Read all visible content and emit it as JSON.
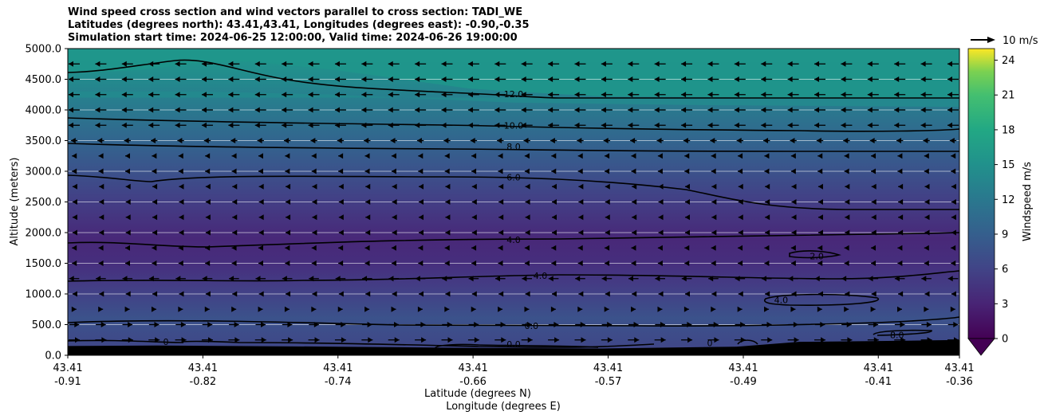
{
  "titles": {
    "line1": "Wind speed cross section and wind vectors parallel to cross section: TADI_WE",
    "line2": "Latitudes (degrees north): 43.41,43.41, Longitudes (degrees east): -0.90,-0.35",
    "line3": "Simulation start time: 2024-06-25 12:00:00, Valid time: 2024-06-26 19:00:00"
  },
  "chart_data": {
    "type": "heatmap",
    "subtype": "contourf with contour lines and quiver arrows",
    "ylabel": "Altitude (meters)",
    "xlabel_line1": "Latitude (degrees N)",
    "xlabel_line2": "Longitude (degrees E)",
    "ylim": [
      0,
      5000
    ],
    "y_ticks": [
      "0.0",
      "500.0",
      "1000.0",
      "1500.0",
      "2000.0",
      "2500.0",
      "3000.0",
      "3500.0",
      "4000.0",
      "4500.0",
      "5000.0"
    ],
    "x_ticks": [
      {
        "lat": "43.41",
        "lon": "-0.91"
      },
      {
        "lat": "43.41",
        "lon": "-0.82"
      },
      {
        "lat": "43.41",
        "lon": "-0.74"
      },
      {
        "lat": "43.41",
        "lon": "-0.66"
      },
      {
        "lat": "43.41",
        "lon": "-0.57"
      },
      {
        "lat": "43.41",
        "lon": "-0.49"
      },
      {
        "lat": "43.41",
        "lon": "-0.41"
      },
      {
        "lat": "43.41",
        "lon": "-0.36"
      }
    ],
    "colorbar": {
      "label": "Windspeed m/s",
      "range": [
        0,
        25
      ],
      "ticks": [
        "0",
        "3",
        "6",
        "9",
        "12",
        "15",
        "18",
        "21",
        "24"
      ],
      "extend": "min"
    },
    "quiver_key": "10 m/s",
    "grid": "horizontal",
    "contour_labels": [
      {
        "text": "12.0",
        "x": 0.5,
        "alt": 4260
      },
      {
        "text": "10.0",
        "x": 0.5,
        "alt": 3750
      },
      {
        "text": "8.0",
        "x": 0.5,
        "alt": 3400
      },
      {
        "text": "6.0",
        "x": 0.5,
        "alt": 2900
      },
      {
        "text": "4.0",
        "x": 0.5,
        "alt": 1880
      },
      {
        "text": "4.0",
        "x": 0.53,
        "alt": 1300
      },
      {
        "text": "0.0",
        "x": 0.52,
        "alt": 480
      },
      {
        "text": "0.0",
        "x": 0.5,
        "alt": 180
      },
      {
        "text": "2.0",
        "x": 0.84,
        "alt": 1620
      },
      {
        "text": "4.0",
        "x": 0.8,
        "alt": 900
      },
      {
        "text": "8.0",
        "x": 0.93,
        "alt": 330
      },
      {
        "text": "0",
        "x": 0.72,
        "alt": 200
      },
      {
        "text": "0",
        "x": 0.11,
        "alt": 220
      }
    ],
    "bands": [
      {
        "color": "#1f9a8a",
        "points": [
          [
            0,
            4800
          ],
          [
            0.5,
            4780
          ],
          [
            1,
            4780
          ],
          [
            1,
            5000
          ],
          [
            0,
            5000
          ]
        ]
      },
      {
        "color": "#1f968b",
        "points": [
          [
            0,
            4600
          ],
          [
            0.08,
            4650
          ],
          [
            0.15,
            4770
          ],
          [
            0.2,
            4800
          ],
          [
            0.3,
            4650
          ],
          [
            0.45,
            4350
          ],
          [
            0.5,
            4300
          ],
          [
            0.6,
            4220
          ],
          [
            0.8,
            4200
          ],
          [
            1,
            4200
          ],
          [
            1,
            5000
          ],
          [
            0,
            5000
          ]
        ]
      },
      {
        "color": "#23898e",
        "points": [
          [
            0,
            4300
          ],
          [
            0.15,
            4300
          ],
          [
            0.3,
            4250
          ],
          [
            0.45,
            4150
          ],
          [
            0.5,
            4120
          ],
          [
            0.7,
            4080
          ],
          [
            1,
            4050
          ],
          [
            1,
            4200
          ],
          [
            0,
            4200
          ]
        ]
      }
    ],
    "wind_vectors": [
      {
        "alt": 4750,
        "u": -1
      },
      {
        "alt": 4500,
        "u": -1
      },
      {
        "alt": 4250,
        "u": -1
      },
      {
        "alt": 4000,
        "u": -1
      },
      {
        "alt": 3750,
        "u": -1
      },
      {
        "alt": 3500,
        "u": -0.6
      },
      {
        "alt": 3250,
        "u": -0.4
      },
      {
        "alt": 3000,
        "u": -0.4
      },
      {
        "alt": 2750,
        "u": -0.3
      },
      {
        "alt": 2500,
        "u": -0.3
      },
      {
        "alt": 2250,
        "u": -0.3
      },
      {
        "alt": 2000,
        "u": -0.3
      },
      {
        "alt": 1750,
        "u": -0.4
      },
      {
        "alt": 1500,
        "u": -0.4
      },
      {
        "alt": 1250,
        "u": -0.9
      },
      {
        "alt": 1000,
        "u": -0.3
      },
      {
        "alt": 750,
        "u": 0.4
      },
      {
        "alt": 500,
        "u": 0.9
      },
      {
        "alt": 250,
        "u": 1
      }
    ],
    "terrain": [
      [
        0,
        150
      ],
      [
        0.1,
        160
      ],
      [
        0.3,
        140
      ],
      [
        0.45,
        120
      ],
      [
        0.6,
        110
      ],
      [
        0.75,
        140
      ],
      [
        0.82,
        220
      ],
      [
        0.9,
        230
      ],
      [
        1,
        250
      ]
    ]
  }
}
